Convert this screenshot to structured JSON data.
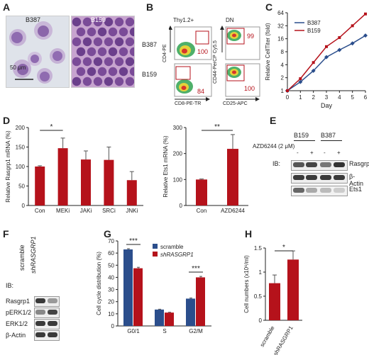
{
  "panels": {
    "A": {
      "label": "A",
      "img1_title": "B387",
      "img2_title": "B159",
      "scale": "50 μm"
    },
    "B": {
      "label": "B",
      "col1": "Thy1.2+",
      "col2": "DN",
      "row1": "B387",
      "row2": "B159",
      "yaxis1": "CD4-PE",
      "xaxis1": "CD8-PE-TR",
      "yaxis2": "CD44-PerCP Cy5.5",
      "xaxis2": "CD25-APC",
      "gates": [
        "100",
        "99",
        "84",
        "100"
      ]
    },
    "C": {
      "label": "C"
    },
    "D": {
      "label": "D"
    },
    "E": {
      "label": "E",
      "cols": [
        "B159",
        "B387"
      ],
      "treatment": "AZD6244 (2 μM)",
      "signs": [
        "-",
        "+",
        "-",
        "+"
      ],
      "ib": "IB:",
      "rows": [
        "Rasgrp1",
        "β-Actin",
        "Ets1"
      ]
    },
    "F": {
      "label": "F",
      "ib": "IB:",
      "cols": [
        "scramble",
        "shRASGRP1"
      ],
      "rows": [
        "Rasgrp1",
        "pERK1/2",
        "ERK1/2",
        "β-Actin"
      ]
    },
    "G": {
      "label": "G"
    },
    "H": {
      "label": "H"
    }
  },
  "colors": {
    "red": "#b5121b",
    "blue": "#2b4e8c",
    "grey": "#bbbbbb"
  },
  "chart_data": [
    {
      "id": "C",
      "type": "line",
      "xlabel": "Day",
      "ylabel": "Relative CellTiter (fold)",
      "yscale": "log2",
      "x": [
        0,
        1,
        2,
        3,
        4,
        5,
        6
      ],
      "yticks": [
        1,
        2,
        4,
        8,
        16,
        32,
        64
      ],
      "ylim": [
        1,
        64
      ],
      "series": [
        {
          "name": "B387",
          "color": "#2b4e8c",
          "values": [
            1,
            1.6,
            2.9,
            6.0,
            8.8,
            12.5,
            19
          ]
        },
        {
          "name": "B159",
          "color": "#b5121b",
          "values": [
            1,
            1.9,
            4.5,
            10.5,
            17,
            32,
            60
          ]
        }
      ]
    },
    {
      "id": "D1",
      "type": "bar",
      "ylabel": "Relative Rasgrp1 mRNA (%)",
      "ylim": [
        0,
        200
      ],
      "yticks": [
        0,
        50,
        100,
        150,
        200
      ],
      "categories": [
        "Con",
        "MEKi",
        "JAKi",
        "SRCi",
        "JNKi"
      ],
      "values": [
        100,
        147,
        118,
        117,
        65
      ],
      "errors": [
        2,
        26,
        22,
        33,
        22
      ],
      "sig": [
        {
          "from": 0,
          "to": 1,
          "label": "*"
        }
      ]
    },
    {
      "id": "D2",
      "type": "bar",
      "ylabel": "Relative Ets1 mRNA (%)",
      "ylim": [
        0,
        300
      ],
      "yticks": [
        0,
        100,
        200,
        300
      ],
      "categories": [
        "Con",
        "AZD6244"
      ],
      "values": [
        100,
        218
      ],
      "errors": [
        2,
        55
      ],
      "sig": [
        {
          "from": 0,
          "to": 1,
          "label": "**"
        }
      ]
    },
    {
      "id": "G",
      "type": "bar",
      "ylabel": "Cell cycle distribution (%)",
      "ylim": [
        0,
        70
      ],
      "yticks": [
        0,
        10,
        20,
        30,
        40,
        50,
        60,
        70
      ],
      "categories": [
        "G0/1",
        "S",
        "G2/M"
      ],
      "series": [
        {
          "name": "scramble",
          "color": "#2b4e8c",
          "values": [
            63,
            13.5,
            22.5
          ],
          "errors": [
            0.6,
            0.3,
            0.5
          ]
        },
        {
          "name": "shRASGRP1",
          "color": "#b5121b",
          "values": [
            47.5,
            11,
            40
          ],
          "errors": [
            0.8,
            0.3,
            0.8
          ]
        }
      ],
      "sig": [
        {
          "cat": 0,
          "label": "***"
        },
        {
          "cat": 2,
          "label": "***"
        }
      ]
    },
    {
      "id": "H",
      "type": "bar",
      "ylabel": "Cell numbers (x10⁶/ml)",
      "ylim": [
        0,
        1.5
      ],
      "yticks": [
        0,
        0.5,
        1,
        1.5
      ],
      "categories": [
        "scramble",
        "shRASGRP1"
      ],
      "values": [
        0.77,
        1.26
      ],
      "errors": [
        0.17,
        0.18
      ],
      "colors": [
        "#b5121b",
        "#b5121b"
      ],
      "sig": [
        {
          "from": 0,
          "to": 1,
          "label": "*"
        }
      ]
    }
  ]
}
